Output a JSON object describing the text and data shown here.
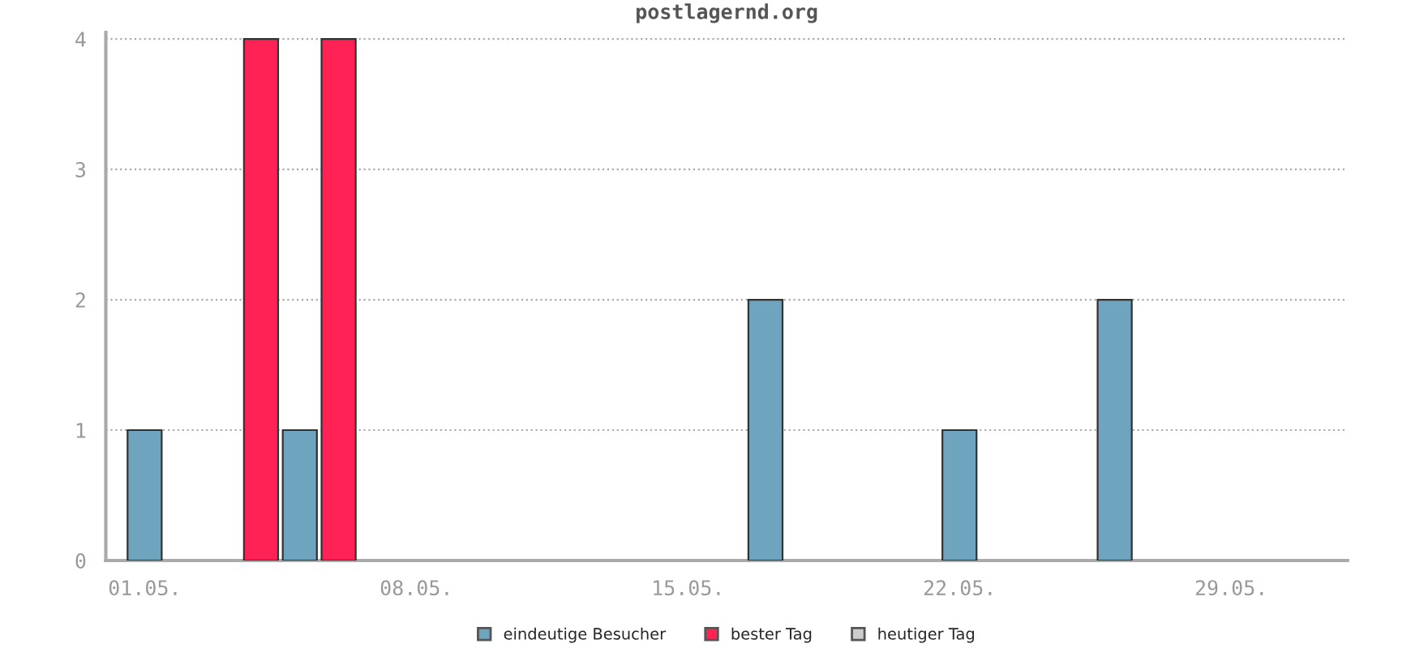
{
  "chart_data": {
    "type": "bar",
    "title": "postlagernd.org",
    "categories": [
      "01.05.",
      null,
      null,
      null,
      null,
      null,
      null,
      "08.05.",
      null,
      null,
      null,
      null,
      null,
      null,
      "15.05.",
      null,
      null,
      null,
      null,
      null,
      null,
      "22.05.",
      null,
      null,
      null,
      null,
      null,
      null,
      "29.05.",
      null,
      null
    ],
    "series": [
      {
        "name": "eindeutige Besucher",
        "color": "#6ea4bd",
        "values": [
          1,
          null,
          null,
          null,
          1,
          null,
          null,
          null,
          null,
          null,
          null,
          null,
          null,
          null,
          null,
          null,
          2,
          null,
          null,
          null,
          null,
          1,
          null,
          null,
          null,
          2,
          null,
          null,
          null,
          null,
          null
        ]
      },
      {
        "name": "bester Tag",
        "color": "#ff2255",
        "values": [
          null,
          null,
          null,
          4,
          null,
          4,
          null,
          null,
          null,
          null,
          null,
          null,
          null,
          null,
          null,
          null,
          null,
          null,
          null,
          null,
          null,
          null,
          null,
          null,
          null,
          null,
          null,
          null,
          null,
          null,
          null
        ]
      },
      {
        "name": "heutiger Tag",
        "color": "#cccccc",
        "values": [
          null,
          null,
          null,
          null,
          null,
          null,
          null,
          null,
          null,
          null,
          null,
          null,
          null,
          null,
          null,
          null,
          null,
          null,
          null,
          null,
          null,
          null,
          null,
          null,
          null,
          null,
          null,
          null,
          null,
          null,
          null
        ]
      }
    ],
    "ylim": [
      0,
      4.05
    ],
    "yticks": [
      0,
      1,
      2,
      3,
      4
    ],
    "grid": "y",
    "legend": "bottom"
  }
}
